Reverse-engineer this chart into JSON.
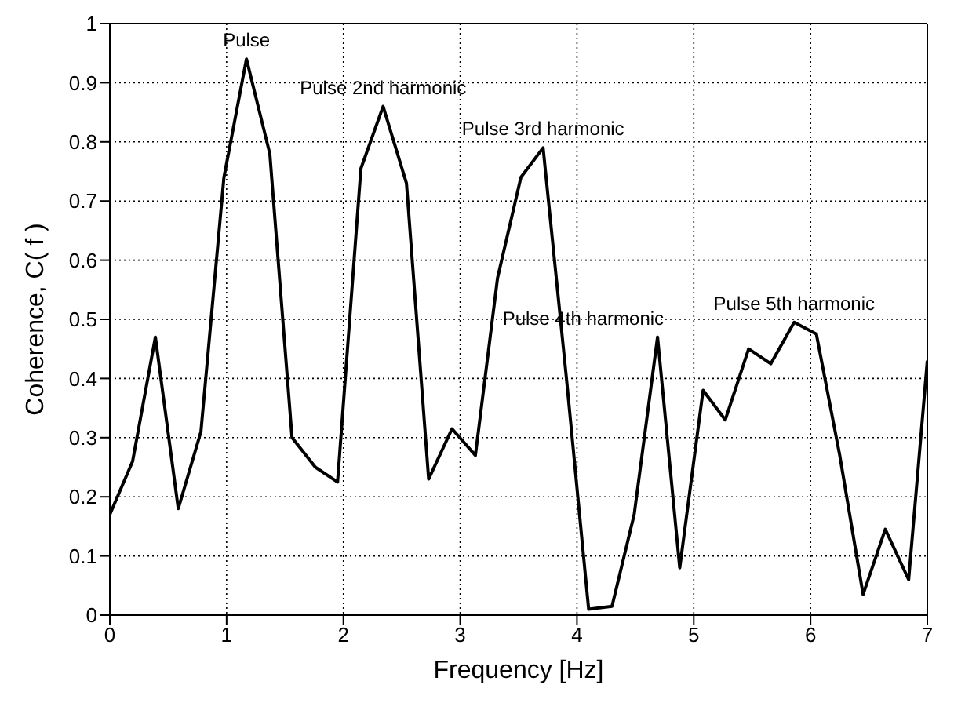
{
  "chart_data": {
    "type": "line",
    "xlabel": "Frequency [Hz]",
    "ylabel": "Coherence,   C( f )",
    "x": [
      0,
      0.195,
      0.39,
      0.586,
      0.78,
      0.977,
      1.17,
      1.37,
      1.56,
      1.76,
      1.95,
      2.15,
      2.34,
      2.54,
      2.73,
      2.93,
      3.13,
      3.32,
      3.52,
      3.71,
      3.91,
      4.1,
      4.3,
      4.49,
      4.69,
      4.88,
      5.08,
      5.27,
      5.47,
      5.66,
      5.86,
      6.05,
      6.25,
      6.45,
      6.64,
      6.84,
      7.0
    ],
    "series": [
      {
        "color": "#000000",
        "values": [
          0.17,
          0.26,
          0.47,
          0.18,
          0.31,
          0.74,
          0.94,
          0.78,
          0.3,
          0.25,
          0.225,
          0.755,
          0.86,
          0.73,
          0.23,
          0.315,
          0.27,
          0.57,
          0.74,
          0.79,
          0.4,
          0.01,
          0.015,
          0.17,
          0.47,
          0.08,
          0.38,
          0.33,
          0.45,
          0.425,
          0.495,
          0.475,
          0.27,
          0.035,
          0.145,
          0.06,
          0.43
        ]
      }
    ],
    "annotations": [
      {
        "text": "Pulse",
        "x": 1.17,
        "y": 0.94
      },
      {
        "text": "Pulse 2nd harmonic",
        "x": 2.34,
        "y": 0.86
      },
      {
        "text": "Pulse 3rd harmonic",
        "x": 3.71,
        "y": 0.79
      },
      {
        "text": "Pulse 4th harmonic",
        "x": 4.69,
        "y": 0.47
      },
      {
        "text": "Pulse 5th harmonic",
        "x": 5.86,
        "y": 0.495
      }
    ],
    "xlim": [
      0,
      7
    ],
    "xticks": [
      0,
      1,
      2,
      3,
      4,
      5,
      6,
      7
    ],
    "ylim": [
      0,
      1
    ],
    "yticks": [
      0,
      0.1,
      0.2,
      0.3,
      0.4,
      0.5,
      0.6,
      0.7,
      0.8,
      0.9,
      1
    ],
    "grid": true,
    "marker": "none",
    "line_style": "solid"
  }
}
